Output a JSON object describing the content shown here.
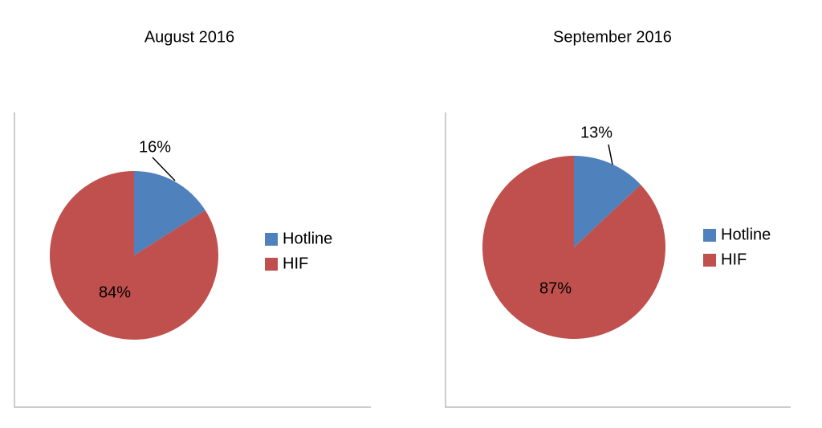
{
  "chart_data": [
    {
      "type": "pie",
      "title": "August 2016",
      "categories": [
        "Hotline",
        "HIF"
      ],
      "values": [
        16,
        84
      ],
      "value_labels": [
        "16%",
        "84%"
      ],
      "colors": [
        "#4f81bd",
        "#c0504d"
      ],
      "legend": "right"
    },
    {
      "type": "pie",
      "title": "September 2016",
      "categories": [
        "Hotline",
        "HIF"
      ],
      "values": [
        13,
        87
      ],
      "value_labels": [
        "13%",
        "87%"
      ],
      "colors": [
        "#4f81bd",
        "#c0504d"
      ],
      "legend": "right"
    }
  ]
}
